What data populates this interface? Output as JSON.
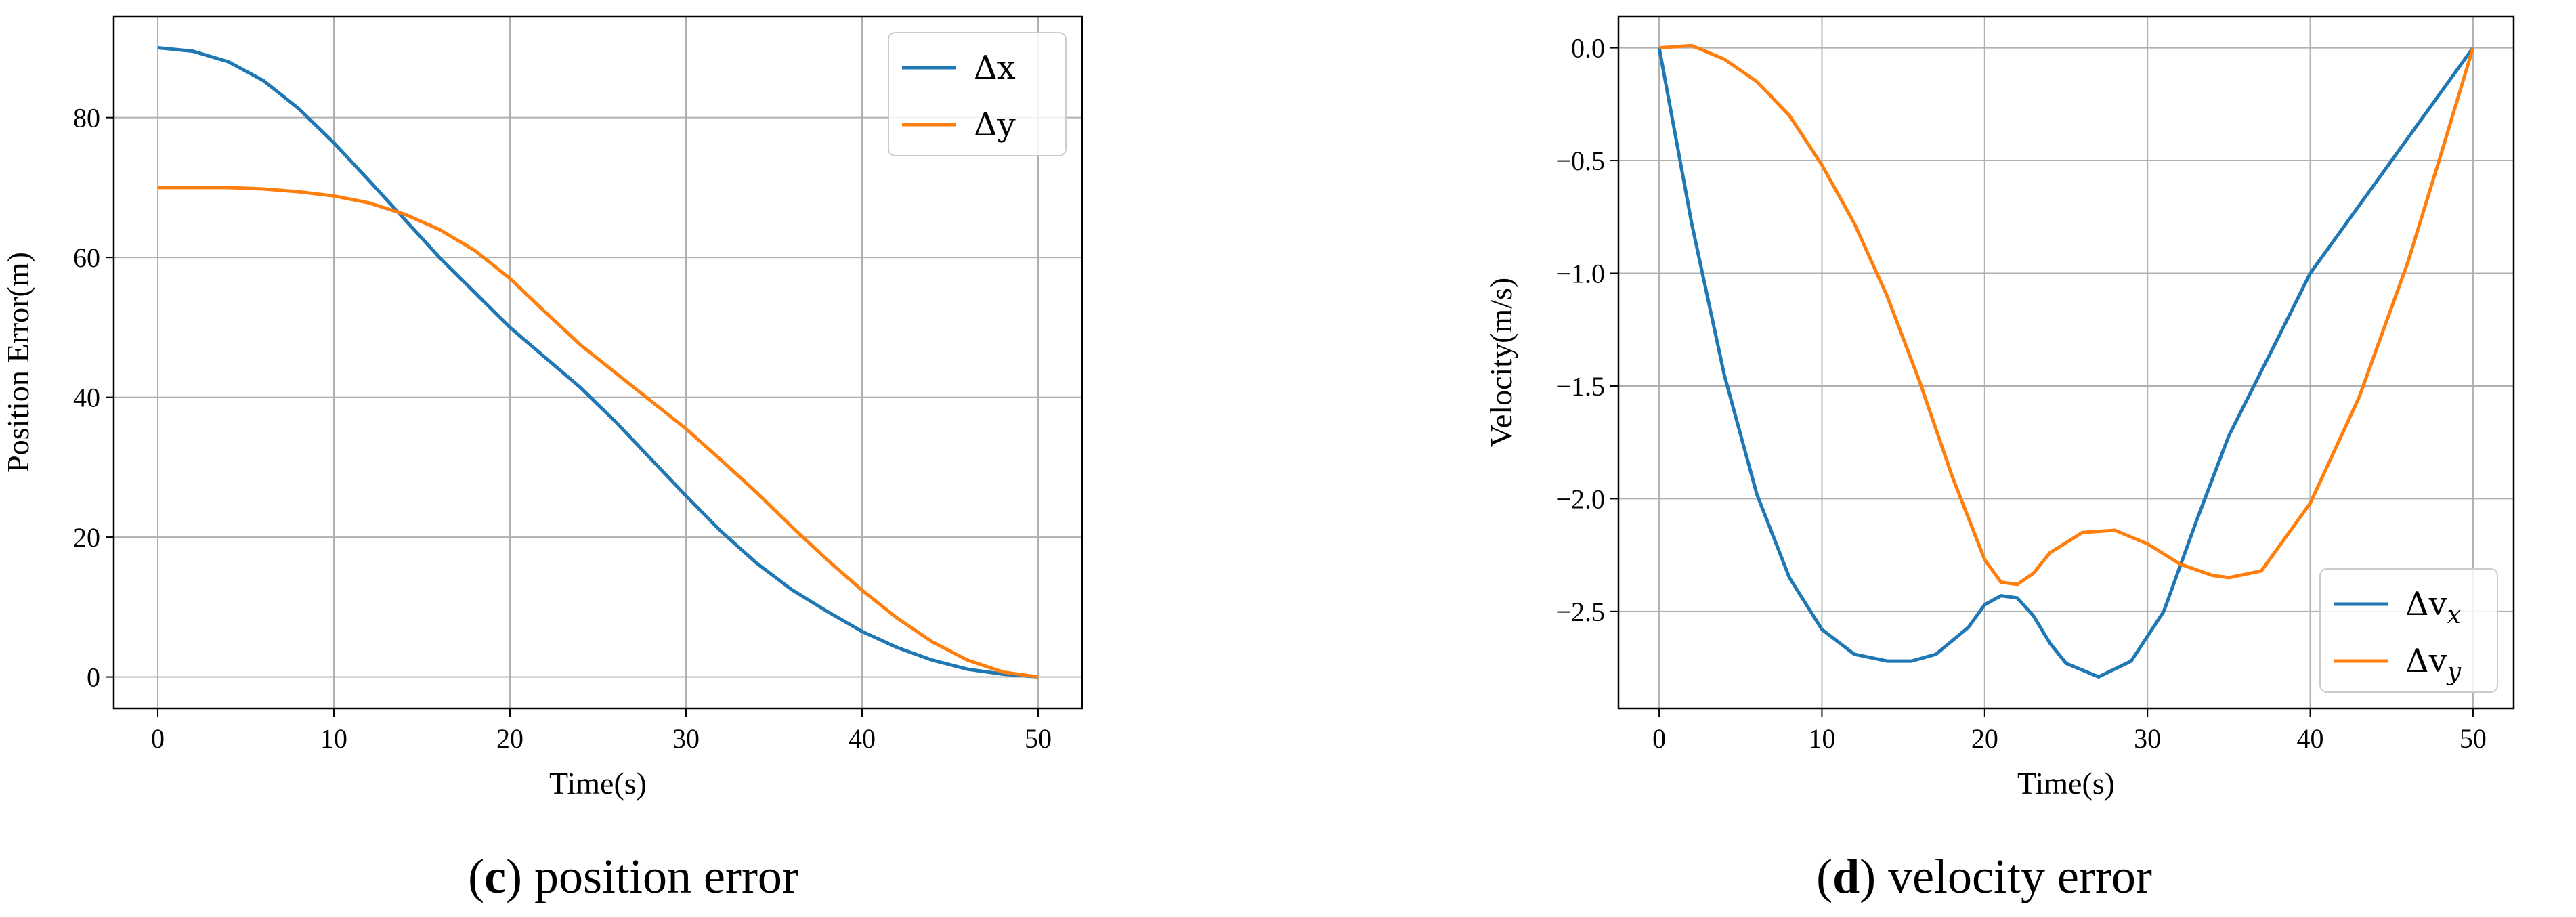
{
  "colors": {
    "series1": "#1f77b4",
    "series2": "#ff7f0e",
    "grid": "#b0b0b0"
  },
  "captions": [
    {
      "open": "(",
      "letter": "c",
      "rest": ") position error"
    },
    {
      "open": "(",
      "letter": "d",
      "rest": ") velocity error"
    }
  ],
  "chart_data": [
    {
      "type": "line",
      "xlabel": "Time(s)",
      "ylabel": "Position Error(m)",
      "xlim": [
        -2.5,
        52.5
      ],
      "ylim": [
        -4.5,
        94.5
      ],
      "xticks": [
        0,
        10,
        20,
        30,
        40,
        50
      ],
      "xtick_labels": [
        "0",
        "10",
        "20",
        "30",
        "40",
        "50"
      ],
      "yticks": [
        0,
        20,
        40,
        60,
        80
      ],
      "ytick_labels": [
        "0",
        "20",
        "40",
        "60",
        "80"
      ],
      "grid": true,
      "legend_position": "top-right",
      "series": [
        {
          "name": "Δx",
          "x": [
            0,
            2,
            4,
            6,
            8,
            10,
            12,
            14,
            16,
            18,
            20,
            22,
            24,
            26,
            28,
            30,
            32,
            34,
            36,
            38,
            40,
            42,
            44,
            46,
            48,
            50
          ],
          "y": [
            90,
            89.5,
            88,
            85.3,
            81.3,
            76.4,
            71,
            65.5,
            60,
            55,
            50,
            45.7,
            41.4,
            36.5,
            31.2,
            25.9,
            20.8,
            16.3,
            12.5,
            9.4,
            6.5,
            4.2,
            2.4,
            1.1,
            0.4,
            0
          ]
        },
        {
          "name": "Δy",
          "x": [
            0,
            2,
            4,
            6,
            8,
            10,
            12,
            14,
            16,
            18,
            20,
            22,
            24,
            26,
            28,
            30,
            32,
            34,
            36,
            38,
            40,
            42,
            44,
            46,
            48,
            50
          ],
          "y": [
            70,
            70,
            70,
            69.8,
            69.4,
            68.8,
            67.8,
            66.2,
            64,
            61,
            57,
            52.2,
            47.5,
            43.5,
            39.5,
            35.5,
            31,
            26.4,
            21.5,
            16.8,
            12.4,
            8.4,
            5,
            2.4,
            0.7,
            0
          ]
        }
      ]
    },
    {
      "type": "line",
      "xlabel": "Time(s)",
      "ylabel": "Velocity(m/s)",
      "xlim": [
        -2.5,
        52.5
      ],
      "ylim": [
        -2.93,
        0.14
      ],
      "xticks": [
        0,
        10,
        20,
        30,
        40,
        50
      ],
      "xtick_labels": [
        "0",
        "10",
        "20",
        "30",
        "40",
        "50"
      ],
      "yticks": [
        0.0,
        -0.5,
        -1.0,
        -1.5,
        -2.0,
        -2.5
      ],
      "ytick_labels": [
        "0.0",
        "−0.5",
        "−1.0",
        "−1.5",
        "−2.0",
        "−2.5"
      ],
      "grid": true,
      "legend_position": "bottom-right",
      "series": [
        {
          "name": "Δv",
          "name_subscript": "x",
          "x": [
            0,
            2,
            4,
            6,
            8,
            10,
            12,
            14,
            15.5,
            17,
            19,
            20,
            21,
            22,
            23,
            24,
            25,
            27,
            29,
            31,
            33,
            35,
            38,
            40,
            44,
            48,
            50
          ],
          "y": [
            0,
            -0.78,
            -1.45,
            -1.98,
            -2.35,
            -2.58,
            -2.69,
            -2.72,
            -2.72,
            -2.69,
            -2.57,
            -2.47,
            -2.43,
            -2.44,
            -2.52,
            -2.64,
            -2.73,
            -2.79,
            -2.72,
            -2.5,
            -2.1,
            -1.72,
            -1.29,
            -1.0,
            -0.6,
            -0.2,
            0
          ]
        },
        {
          "name": "Δv",
          "name_subscript": "y",
          "x": [
            0,
            2,
            4,
            6,
            8,
            10,
            12,
            14,
            16,
            18,
            20,
            21,
            22,
            23,
            24,
            26,
            28,
            30,
            32,
            34,
            35,
            37,
            40,
            43,
            46,
            48,
            50
          ],
          "y": [
            0,
            0.01,
            -0.05,
            -0.15,
            -0.3,
            -0.52,
            -0.78,
            -1.1,
            -1.48,
            -1.9,
            -2.27,
            -2.37,
            -2.38,
            -2.33,
            -2.24,
            -2.15,
            -2.14,
            -2.2,
            -2.29,
            -2.34,
            -2.35,
            -2.32,
            -2.02,
            -1.55,
            -0.95,
            -0.48,
            0
          ]
        }
      ]
    }
  ]
}
